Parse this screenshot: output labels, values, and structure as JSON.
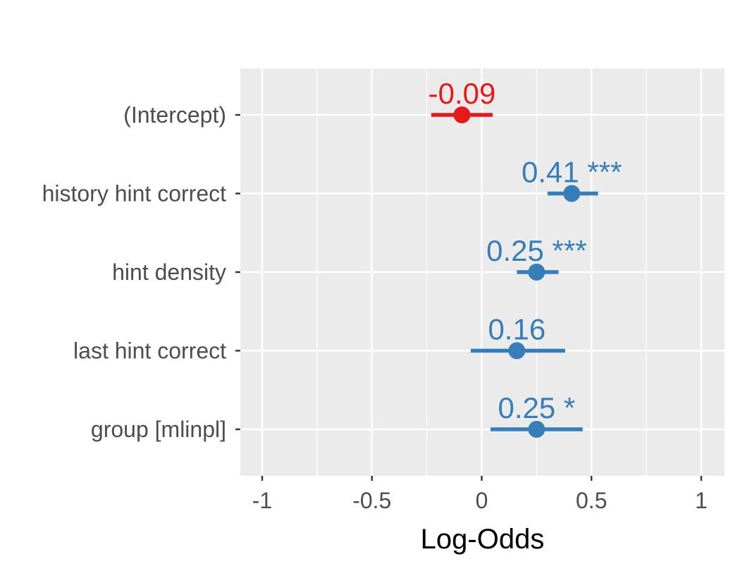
{
  "chart_data": {
    "type": "forest",
    "xlabel": "Log-Odds",
    "xlim": [
      -1.1,
      1.1
    ],
    "xticks": [
      -1,
      -0.5,
      0,
      0.5,
      1
    ],
    "xtick_labels": [
      "-1",
      "-0.5",
      "0",
      "0.5",
      "1"
    ],
    "grid": true,
    "colors": {
      "negative": "#e41a1c",
      "positive": "#377eb8",
      "panel": "#ebebeb",
      "grid": "#ffffff"
    },
    "terms": [
      {
        "label": "(Intercept)",
        "estimate": -0.09,
        "ci": [
          -0.23,
          0.05
        ],
        "value_label": "-0.09",
        "sig": "",
        "direction": "negative"
      },
      {
        "label": "history hint correct",
        "estimate": 0.41,
        "ci": [
          0.3,
          0.53
        ],
        "value_label": "0.41",
        "sig": "***",
        "direction": "positive"
      },
      {
        "label": "hint density",
        "estimate": 0.25,
        "ci": [
          0.16,
          0.35
        ],
        "value_label": "0.25",
        "sig": "***",
        "direction": "positive"
      },
      {
        "label": "last hint correct",
        "estimate": 0.16,
        "ci": [
          -0.05,
          0.38
        ],
        "value_label": "0.16",
        "sig": "",
        "direction": "positive"
      },
      {
        "label": "group [mlinpl]",
        "estimate": 0.25,
        "ci": [
          0.04,
          0.46
        ],
        "value_label": "0.25",
        "sig": "*",
        "direction": "positive"
      }
    ]
  }
}
